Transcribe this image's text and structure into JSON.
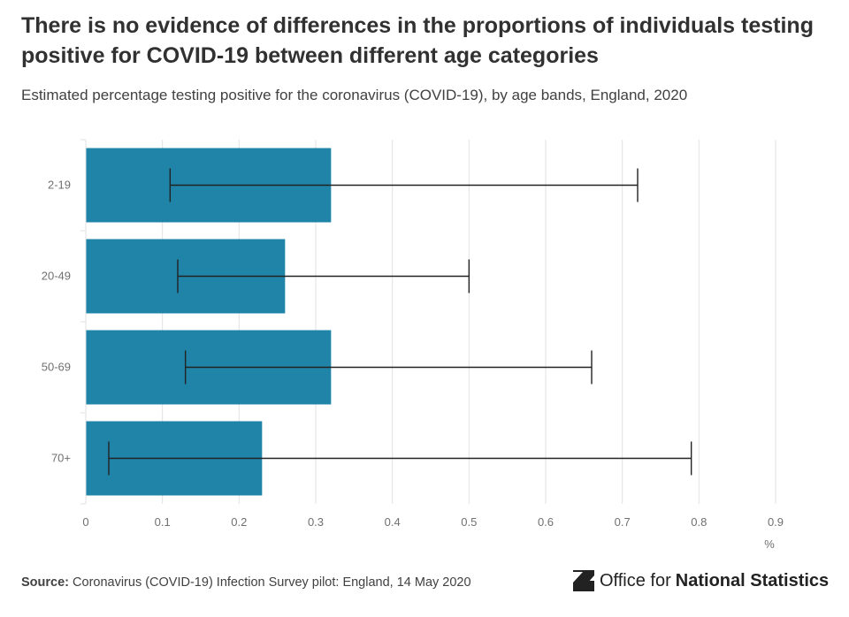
{
  "title": "There is no evidence of differences in the proportions of individuals testing positive for COVID-19 between different age categories",
  "subtitle": "Estimated percentage testing positive for the coronavirus (COVID-19), by age bands, England, 2020",
  "footer": {
    "source_label": "Source:",
    "source_text": "Coronavirus (COVID-19) Infection Survey pilot: England, 14 May 2020"
  },
  "logo": {
    "text_regular": "Office for",
    "text_bold": "National Statistics"
  },
  "colors": {
    "bar": "#1f84a8",
    "error": "#222222",
    "grid": "#e2e2e3",
    "axis_text": "#707071"
  },
  "chart_data": {
    "type": "bar",
    "orientation": "horizontal",
    "categories": [
      "2-19",
      "20-49",
      "50-69",
      "70+"
    ],
    "values": [
      0.32,
      0.26,
      0.32,
      0.23
    ],
    "error_lower": [
      0.11,
      0.12,
      0.13,
      0.03
    ],
    "error_upper": [
      0.72,
      0.5,
      0.66,
      0.79
    ],
    "x_ticks": [
      "0",
      "0.1",
      "0.2",
      "0.3",
      "0.4",
      "0.5",
      "0.6",
      "0.7",
      "0.8",
      "0.9"
    ],
    "xlim": [
      0,
      0.9
    ],
    "xlabel": "%",
    "grid": true
  }
}
